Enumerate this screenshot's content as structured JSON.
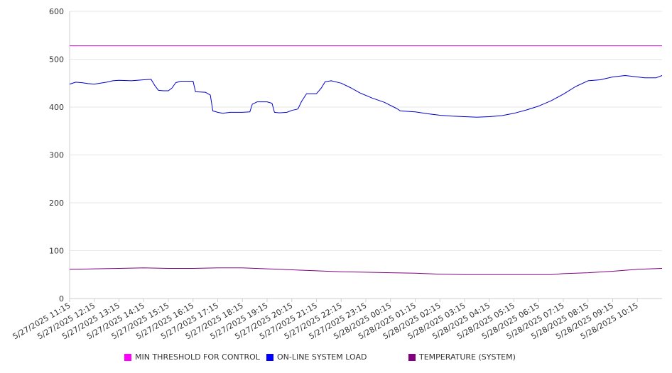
{
  "chart_data": {
    "type": "line",
    "x_labels": [
      "5/27/2025 11:15",
      "5/27/2025 12:15",
      "5/27/2025 13:15",
      "5/27/2025 14:15",
      "5/27/2025 15:15",
      "5/27/2025 16:15",
      "5/27/2025 17:15",
      "5/27/2025 18:15",
      "5/27/2025 19:15",
      "5/27/2025 20:15",
      "5/27/2025 21:15",
      "5/27/2025 22:15",
      "5/27/2025 23:15",
      "5/28/2025 00:15",
      "5/28/2025 01:15",
      "5/28/2025 02:15",
      "5/28/2025 03:15",
      "5/28/2025 04:15",
      "5/28/2025 05:15",
      "5/28/2025 06:15",
      "5/28/2025 07:15",
      "5/28/2025 08:15",
      "5/28/2025 09:15",
      "5/28/2025 10:15"
    ],
    "x_range": [
      0,
      24
    ],
    "ylim": [
      0,
      600
    ],
    "y_ticks": [
      "0",
      "100",
      "200",
      "300",
      "400",
      "500",
      "600"
    ],
    "grid": true,
    "legend_position": "bottom",
    "series": [
      {
        "name": "MIN THRESHOLD FOR CONTROL",
        "color": "#c000c0",
        "points": [
          [
            0,
            528
          ],
          [
            24,
            528
          ]
        ]
      },
      {
        "name": "ON-LINE SYSTEM LOAD",
        "color": "#0000cc",
        "points": [
          [
            0,
            448
          ],
          [
            0.25,
            452
          ],
          [
            0.5,
            451
          ],
          [
            0.75,
            449
          ],
          [
            1,
            448
          ],
          [
            1.5,
            452
          ],
          [
            1.75,
            455
          ],
          [
            2,
            456
          ],
          [
            2.5,
            455
          ],
          [
            3,
            457
          ],
          [
            3.3,
            458
          ],
          [
            3.45,
            445
          ],
          [
            3.6,
            435
          ],
          [
            3.8,
            434
          ],
          [
            4,
            434
          ],
          [
            4.15,
            440
          ],
          [
            4.3,
            451
          ],
          [
            4.5,
            454
          ],
          [
            5,
            454
          ],
          [
            5.1,
            432
          ],
          [
            5.5,
            431
          ],
          [
            5.7,
            425
          ],
          [
            5.8,
            392
          ],
          [
            6,
            389
          ],
          [
            6.2,
            387
          ],
          [
            6.5,
            389
          ],
          [
            7,
            389
          ],
          [
            7.3,
            390
          ],
          [
            7.4,
            406
          ],
          [
            7.6,
            411
          ],
          [
            8,
            411
          ],
          [
            8.2,
            408
          ],
          [
            8.3,
            389
          ],
          [
            8.5,
            388
          ],
          [
            8.8,
            389
          ],
          [
            9,
            393
          ],
          [
            9.25,
            396
          ],
          [
            9.4,
            412
          ],
          [
            9.6,
            428
          ],
          [
            10,
            428
          ],
          [
            10.2,
            440
          ],
          [
            10.35,
            453
          ],
          [
            10.6,
            455
          ],
          [
            11,
            450
          ],
          [
            11.4,
            440
          ],
          [
            11.75,
            430
          ],
          [
            12.25,
            419
          ],
          [
            12.75,
            410
          ],
          [
            13.25,
            397
          ],
          [
            13.4,
            392
          ],
          [
            14,
            390
          ],
          [
            14.5,
            386
          ],
          [
            15,
            383
          ],
          [
            15.5,
            381
          ],
          [
            16,
            380
          ],
          [
            16.5,
            379
          ],
          [
            17,
            380
          ],
          [
            17.5,
            382
          ],
          [
            18,
            387
          ],
          [
            18.5,
            394
          ],
          [
            19,
            402
          ],
          [
            19.5,
            413
          ],
          [
            20,
            427
          ],
          [
            20.5,
            443
          ],
          [
            21,
            455
          ],
          [
            21.5,
            457
          ],
          [
            22,
            463
          ],
          [
            22.5,
            466
          ],
          [
            23,
            463
          ],
          [
            23.3,
            461
          ],
          [
            23.75,
            461
          ],
          [
            24,
            466
          ]
        ]
      },
      {
        "name": "TEMPERATURE (SYSTEM)",
        "color": "#800080",
        "points": [
          [
            0,
            61
          ],
          [
            1,
            62
          ],
          [
            2,
            63
          ],
          [
            3,
            64
          ],
          [
            4,
            63
          ],
          [
            5,
            63
          ],
          [
            6,
            64
          ],
          [
            7,
            64
          ],
          [
            8,
            62
          ],
          [
            9,
            60
          ],
          [
            10,
            58
          ],
          [
            11,
            56
          ],
          [
            12,
            55
          ],
          [
            13,
            54
          ],
          [
            14,
            53
          ],
          [
            15,
            51
          ],
          [
            16,
            50
          ],
          [
            17,
            50
          ],
          [
            18,
            50
          ],
          [
            19,
            50
          ],
          [
            19.5,
            50
          ],
          [
            20,
            52
          ],
          [
            21,
            54
          ],
          [
            22,
            57
          ],
          [
            23,
            61
          ],
          [
            24,
            63
          ]
        ]
      }
    ]
  }
}
